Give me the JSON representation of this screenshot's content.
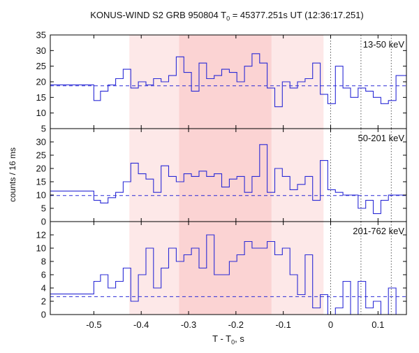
{
  "figure": {
    "title_pre": "KONUS-WIND S2 GRB 950804 T",
    "title_sub": "0",
    "title_post": " = 45377.251s UT (12:36:17.251)",
    "xlabel_pre": "T - T",
    "xlabel_sub": "0",
    "xlabel_post": ", s",
    "ylabel": "counts / 16 ms"
  },
  "chart_data": {
    "type": "line",
    "style": "step",
    "x_range": [
      -0.592,
      0.16
    ],
    "x_ticks": [
      -0.5,
      -0.4,
      -0.3,
      -0.2,
      -0.1,
      0,
      0.1
    ],
    "x_tick_labels": [
      "-0.5",
      "-0.4",
      "-0.3",
      "-0.2",
      "-0.1",
      "0",
      "0.1"
    ],
    "bin_edges": [
      -0.5,
      -0.486,
      -0.47,
      -0.454,
      -0.438,
      -0.422,
      -0.406,
      -0.39,
      -0.374,
      -0.358,
      -0.342,
      -0.326,
      -0.31,
      -0.294,
      -0.278,
      -0.262,
      -0.246,
      -0.23,
      -0.214,
      -0.198,
      -0.182,
      -0.166,
      -0.15,
      -0.134,
      -0.118,
      -0.102,
      -0.086,
      -0.07,
      -0.054,
      -0.038,
      -0.022,
      -0.006,
      0.01,
      0.026,
      0.042,
      0.058,
      0.074,
      0.09,
      0.106,
      0.122,
      0.138,
      0.154
    ],
    "shaded_intervals": [
      {
        "x": [
          -0.425,
          -0.015
        ],
        "color": "#fde8e8"
      },
      {
        "x": [
          -0.32,
          -0.125
        ],
        "color": "#fbd3d3"
      }
    ],
    "vertical_markers": [
      0,
      0.064,
      0.128
    ],
    "line_color": "#2b2bd6",
    "panels": [
      {
        "label": "13-50 keV",
        "ylim": [
          5,
          35
        ],
        "y_ticks": [
          5,
          10,
          15,
          20,
          25,
          30,
          35
        ],
        "y_tick_labels": [
          "5",
          "10",
          "15",
          "20",
          "25",
          "30",
          "35"
        ],
        "background": 18.7,
        "pre_level": 19,
        "values": [
          14,
          17,
          19,
          21,
          24,
          18,
          20,
          19,
          21,
          20,
          22,
          28,
          23,
          17,
          26,
          21,
          22,
          24,
          23,
          20,
          25,
          29,
          26,
          18,
          12,
          20,
          18,
          20,
          21,
          26,
          16,
          13,
          25,
          18,
          15,
          18,
          17,
          15,
          13,
          14,
          22
        ]
      },
      {
        "label": "50-201 keV",
        "ylim": [
          0,
          35
        ],
        "y_ticks": [
          0,
          5,
          10,
          15,
          20,
          25,
          30
        ],
        "y_tick_labels": [
          "0",
          "5",
          "10",
          "15",
          "20",
          "25",
          "30"
        ],
        "background": 9.8,
        "pre_level": 11.5,
        "values": [
          8,
          7,
          9,
          11,
          15,
          22,
          18,
          16,
          11,
          21,
          17,
          15,
          18,
          17,
          19,
          17,
          18,
          13,
          16,
          17,
          11,
          17,
          29,
          11,
          20,
          17,
          12,
          14,
          17,
          8,
          23,
          12,
          11,
          10,
          10,
          5,
          8,
          3,
          8,
          10,
          10
        ]
      },
      {
        "label": "201-762 keV",
        "ylim": [
          0,
          14
        ],
        "y_ticks": [
          0,
          2,
          4,
          6,
          8,
          10,
          12
        ],
        "y_tick_labels": [
          "0",
          "2",
          "4",
          "6",
          "8",
          "10",
          "12"
        ],
        "background": 2.7,
        "pre_level": 3.1,
        "values": [
          5,
          6,
          4,
          5,
          7,
          2,
          6,
          10,
          4,
          7,
          10,
          8,
          9,
          10,
          7,
          12,
          6,
          6,
          8,
          9,
          11,
          10,
          10,
          11,
          9,
          10,
          6,
          3,
          9,
          1,
          3,
          0,
          1,
          5,
          0,
          5,
          1,
          2,
          0,
          4,
          0
        ]
      }
    ]
  }
}
